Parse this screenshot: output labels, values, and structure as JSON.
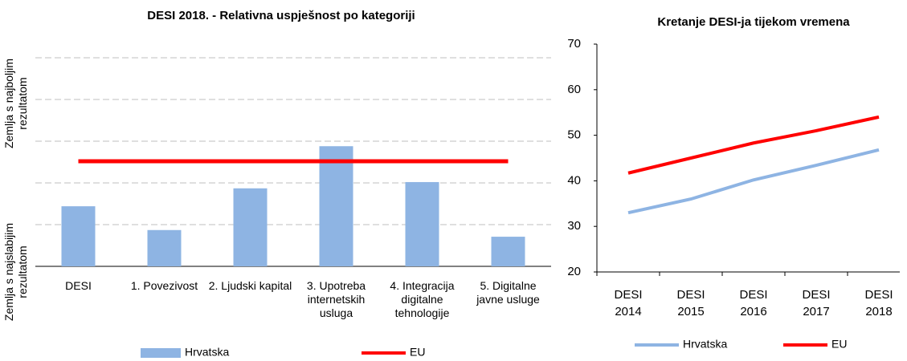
{
  "chart_data": [
    {
      "type": "bar",
      "title": "DESI 2018. - Relativna uspješnost po kategoriji",
      "y_labels": [
        "Zemlja s najboljim rezultatom",
        "Zemlja s najslabijim rezultatom"
      ],
      "categories": [
        "DESI",
        "1. Povezivost",
        "2. Ljudski kapital",
        "3. Upotreba internetskih usluga",
        "4. Integracija digitalne tehnologije",
        "5. Digitalne javne usluge"
      ],
      "series": [
        {
          "name": "Hrvatska",
          "color": "#8eb4e3",
          "kind": "bar",
          "values": [
            1.44,
            0.87,
            1.87,
            2.88,
            2.02,
            0.71
          ]
        },
        {
          "name": "EU",
          "color": "#ff0000",
          "kind": "line",
          "values": [
            2.52,
            2.52,
            2.52,
            2.52,
            2.52,
            2.52
          ]
        }
      ],
      "ylim": [
        0,
        5
      ],
      "yticks": [
        0,
        1,
        2,
        3,
        4,
        5
      ],
      "ytick_labels": false,
      "grid": true
    },
    {
      "type": "line",
      "title": "Kretanje DESI-ja tijekom vremena",
      "categories": [
        "DESI 2014",
        "DESI 2015",
        "DESI 2016",
        "DESI 2017",
        "DESI 2018"
      ],
      "series": [
        {
          "name": "Hrvatska",
          "color": "#8eb4e3",
          "values": [
            33.0,
            36.0,
            40.2,
            43.4,
            46.8
          ]
        },
        {
          "name": "EU",
          "color": "#ff0000",
          "values": [
            41.7,
            45.0,
            48.3,
            51.0,
            54.0
          ]
        }
      ],
      "ylim": [
        20,
        70
      ],
      "yticks": [
        20,
        30,
        40,
        50,
        60,
        70
      ],
      "ytick_labels": true,
      "grid": false
    }
  ]
}
